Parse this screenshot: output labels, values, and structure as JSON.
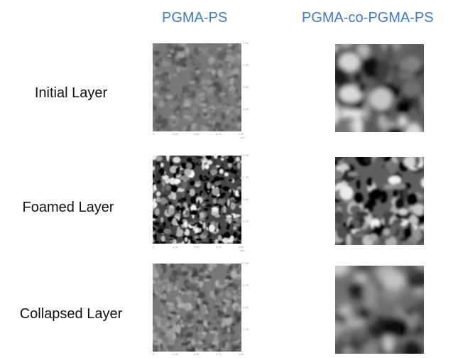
{
  "columns": {
    "left": "PGMA-PS",
    "right": "PGMA-co-PGMA-PS"
  },
  "rows": [
    {
      "label": "Initial Layer"
    },
    {
      "label": "Foamed Layer"
    },
    {
      "label": "Collapsed Layer"
    }
  ],
  "afm_axis": {
    "y_ticks": [
      "1.00",
      "0.75",
      "0.50",
      "0.25"
    ],
    "x_ticks": [
      "0",
      "0.25",
      "0.50",
      "0.75",
      "1.00"
    ],
    "x_unit": "μm"
  },
  "colors": {
    "column_title": "#3c7ad6",
    "row_label": "#111111"
  }
}
